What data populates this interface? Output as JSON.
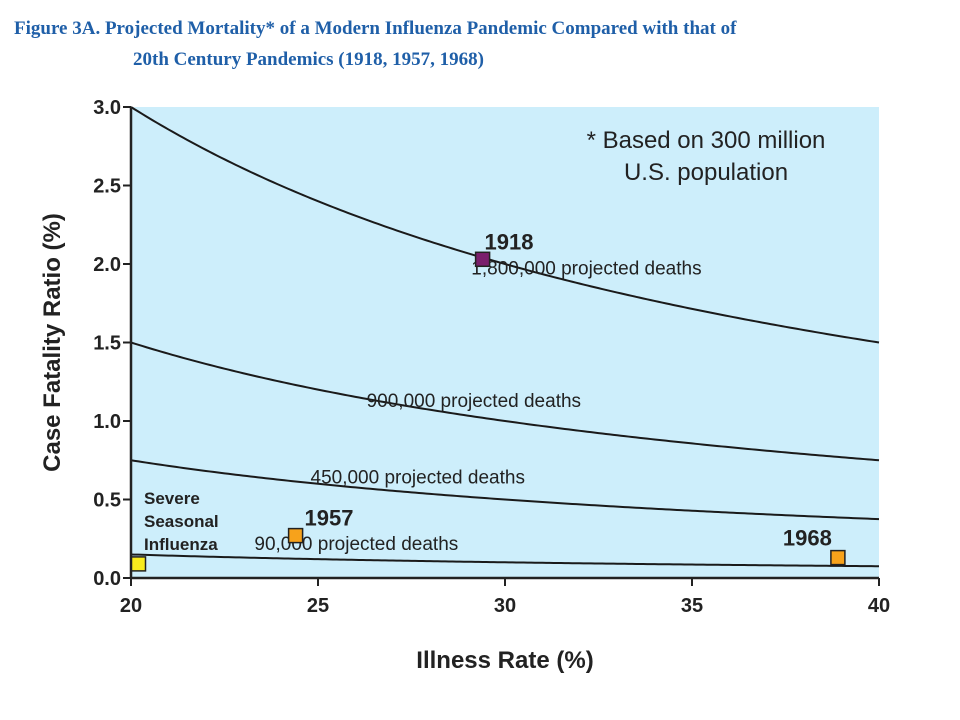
{
  "figure": {
    "title_line1": "Figure 3A. Projected Mortality* of a Modern Influenza Pandemic Compared with that of",
    "title_line2": "20th Century Pandemics (1918, 1957, 1968)"
  },
  "colors": {
    "plot_background": "#cdeefb",
    "curve": "#1a1a1a",
    "pandemic_1918": "#7a1e6c",
    "pandemic_1957": "#f7a21b",
    "pandemic_1968": "#f7a21b",
    "seasonal": "#f9ec1d",
    "title": "#1f5fa8"
  },
  "chart_data": {
    "type": "line",
    "title": "Figure 3A. Projected Mortality* of a Modern Influenza Pandemic Compared with that of 20th Century Pandemics (1918, 1957, 1968)",
    "xlabel": "Illness Rate (%)",
    "ylabel": "Case Fatality Ratio (%)",
    "xlim": [
      20,
      40
    ],
    "ylim": [
      0,
      3.0
    ],
    "xticks": [
      "20",
      "25",
      "30",
      "35",
      "40"
    ],
    "yticks": [
      "0.0",
      "0.5",
      "1.0",
      "1.5",
      "2.0",
      "2.5",
      "3.0"
    ],
    "grid": false,
    "population_millions": 300,
    "note_lines": [
      "* Based on 300 million",
      "U.S. population"
    ],
    "series": [
      {
        "name": "1,800,000 projected deaths",
        "deaths": 1800000,
        "label_x": 29.1
      },
      {
        "name": "900,000 projected deaths",
        "deaths": 900000,
        "label_x": 26.3
      },
      {
        "name": "450,000 projected deaths",
        "deaths": 450000,
        "label_x": 24.8
      },
      {
        "name": "90,000 projected deaths",
        "deaths": 90000,
        "label_x": 23.3
      }
    ],
    "points": [
      {
        "label": "1918",
        "x": 29.4,
        "y": 2.03,
        "color_key": "pandemic_1918"
      },
      {
        "label": "1957",
        "x": 24.4,
        "y": 0.27,
        "color_key": "pandemic_1957"
      },
      {
        "label": "1968",
        "x": 38.9,
        "y": 0.13,
        "color_key": "pandemic_1968"
      },
      {
        "label_lines": [
          "Severe",
          "Seasonal",
          "Influenza"
        ],
        "x": 20.2,
        "y": 0.09,
        "color_key": "seasonal"
      }
    ]
  }
}
